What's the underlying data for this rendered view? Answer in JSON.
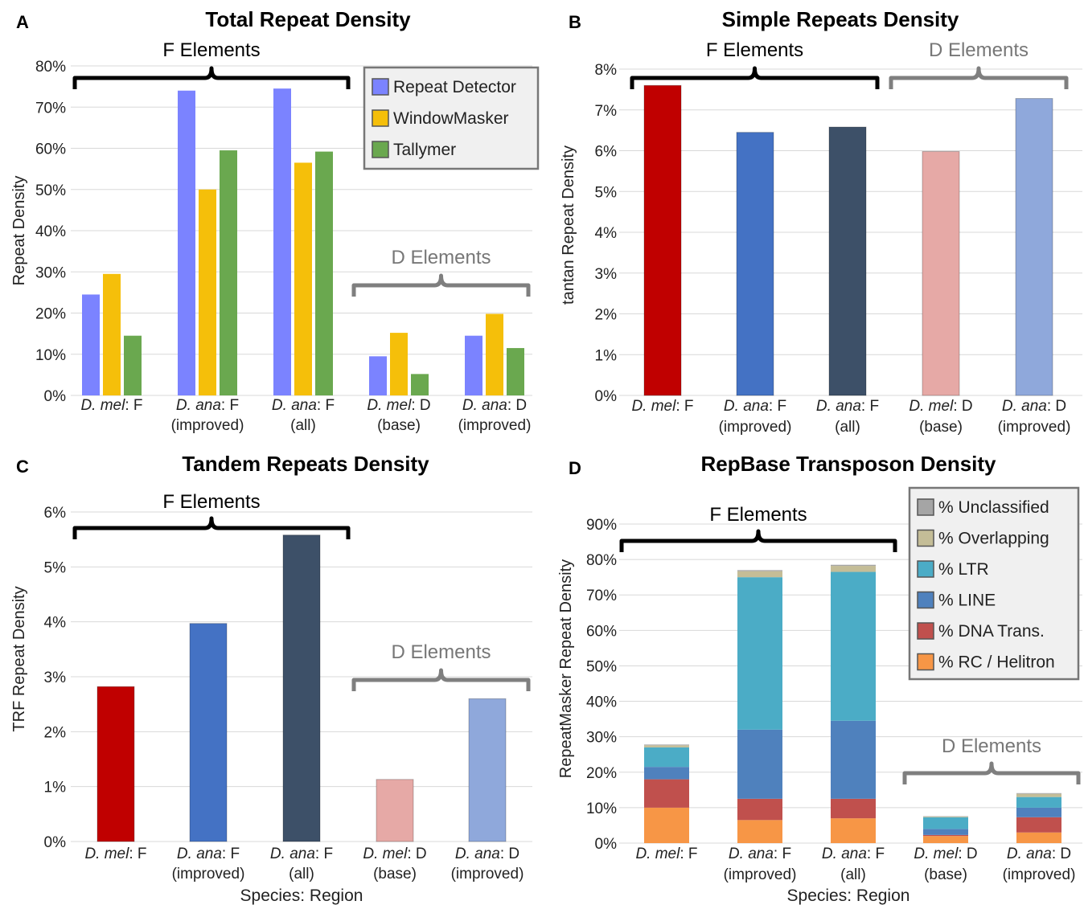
{
  "panels": [
    {
      "letter": "A",
      "chart_data": {
        "type": "bar",
        "title": "Total Repeat Density",
        "ylabel": "Repeat Density",
        "xlabel": "",
        "ylim": [
          0,
          80
        ],
        "yticks": [
          "0%",
          "10%",
          "20%",
          "30%",
          "40%",
          "50%",
          "60%",
          "70%",
          "80%"
        ],
        "categories": [
          {
            "species": "D. mel",
            "region": ": F",
            "sub": ""
          },
          {
            "species": "D. ana",
            "region": ": F",
            "sub": "(improved)"
          },
          {
            "species": "D. ana",
            "region": ": F",
            "sub": "(all)"
          },
          {
            "species": "D. mel",
            "region": ": D",
            "sub": "(base)"
          },
          {
            "species": "D. ana",
            "region": ": D",
            "sub": "(improved)"
          }
        ],
        "series": [
          {
            "name": "Repeat Detector",
            "color": "#7b83ff",
            "values": [
              24.5,
              74,
              74.5,
              9.5,
              14.5
            ]
          },
          {
            "name": "WindowMasker",
            "color": "#f5bf0a",
            "values": [
              29.5,
              50,
              56.5,
              15.2,
              19.8
            ]
          },
          {
            "name": "Tallymer",
            "color": "#6aa84f",
            "values": [
              14.5,
              59.5,
              59.2,
              5.2,
              11.5
            ]
          }
        ],
        "groups": [
          {
            "label": "F Elements",
            "span": [
              0,
              2
            ],
            "style": "f"
          },
          {
            "label": "D Elements",
            "span": [
              3,
              4
            ],
            "style": "d"
          }
        ],
        "legend": "top-right",
        "grid": true
      }
    },
    {
      "letter": "B",
      "chart_data": {
        "type": "bar",
        "title": "Simple Repeats Density",
        "ylabel": "tantan Repeat Density",
        "xlabel": "",
        "ylim": [
          0,
          8
        ],
        "yticks": [
          "0%",
          "1%",
          "2%",
          "3%",
          "4%",
          "5%",
          "6%",
          "7%",
          "8%"
        ],
        "categories": [
          {
            "species": "D. mel",
            "region": ": F",
            "sub": ""
          },
          {
            "species": "D. ana",
            "region": ": F",
            "sub": "(improved)"
          },
          {
            "species": "D. ana",
            "region": ": F",
            "sub": "(all)"
          },
          {
            "species": "D. mel",
            "region": ": D",
            "sub": "(base)"
          },
          {
            "species": "D. ana",
            "region": ": D",
            "sub": "(improved)"
          }
        ],
        "values": [
          7.6,
          6.45,
          6.58,
          5.98,
          7.28
        ],
        "colors": [
          "#c00000",
          "#4472c4",
          "#3d5068",
          "#e6a9a6",
          "#8fa8db"
        ],
        "groups": [
          {
            "label": "F Elements",
            "span": [
              0,
              2
            ],
            "style": "f"
          },
          {
            "label": "D Elements",
            "span": [
              3,
              4
            ],
            "style": "d"
          }
        ],
        "grid": true
      }
    },
    {
      "letter": "C",
      "chart_data": {
        "type": "bar",
        "title": "Tandem Repeats Density",
        "ylabel": "TRF Repeat Density",
        "xlabel": "Species: Region",
        "ylim": [
          0,
          6
        ],
        "yticks": [
          "0%",
          "1%",
          "2%",
          "3%",
          "4%",
          "5%",
          "6%"
        ],
        "categories": [
          {
            "species": "D. mel",
            "region": ": F",
            "sub": ""
          },
          {
            "species": "D. ana",
            "region": ": F",
            "sub": "(improved)"
          },
          {
            "species": "D. ana",
            "region": ": F",
            "sub": "(all)"
          },
          {
            "species": "D. mel",
            "region": ": D",
            "sub": "(base)"
          },
          {
            "species": "D. ana",
            "region": ": D",
            "sub": "(improved)"
          }
        ],
        "values": [
          2.82,
          3.97,
          5.58,
          1.13,
          2.6
        ],
        "colors": [
          "#c00000",
          "#4472c4",
          "#3d5068",
          "#e6a9a6",
          "#8fa8db"
        ],
        "groups": [
          {
            "label": "F Elements",
            "span": [
              0,
              2
            ],
            "style": "f"
          },
          {
            "label": "D Elements",
            "span": [
              3,
              4
            ],
            "style": "d"
          }
        ],
        "grid": true
      }
    },
    {
      "letter": "D",
      "chart_data": {
        "type": "bar",
        "stacked": true,
        "title": "RepBase Transposon Density",
        "ylabel": "RepeatMasker Repeat Density",
        "xlabel": "Species: Region",
        "ylim": [
          0,
          90
        ],
        "yticks": [
          "0%",
          "10%",
          "20%",
          "30%",
          "40%",
          "50%",
          "60%",
          "70%",
          "80%",
          "90%"
        ],
        "categories": [
          {
            "species": "D. mel",
            "region": ": F",
            "sub": ""
          },
          {
            "species": "D. ana",
            "region": ": F",
            "sub": "(improved)"
          },
          {
            "species": "D. ana",
            "region": ": F",
            "sub": "(all)"
          },
          {
            "species": "D. mel",
            "region": ": D",
            "sub": "(base)"
          },
          {
            "species": "D. ana",
            "region": ": D",
            "sub": "(improved)"
          }
        ],
        "series": [
          {
            "name": "% RC / Helitron",
            "color": "#f79646",
            "values": [
              10,
              6.5,
              7,
              2,
              3
            ]
          },
          {
            "name": "% DNA Trans.",
            "color": "#c0504d",
            "values": [
              8,
              6,
              5.5,
              0.3,
              4.3
            ]
          },
          {
            "name": "% LINE",
            "color": "#4f81bd",
            "values": [
              3.5,
              19.5,
              22,
              1.7,
              2.7
            ]
          },
          {
            "name": "% LTR",
            "color": "#4bacc6",
            "values": [
              5.5,
              43,
              42,
              3.3,
              3
            ]
          },
          {
            "name": "% Overlapping",
            "color": "#c4bd97",
            "values": [
              0.6,
              1.7,
              1.7,
              0.2,
              0.9
            ]
          },
          {
            "name": "% Unclassified",
            "color": "#a5a5a5",
            "values": [
              0.2,
              0.3,
              0.3,
              0.1,
              0.2
            ]
          }
        ],
        "legend_order": [
          "% Unclassified",
          "% Overlapping",
          "% LTR",
          "% LINE",
          "% DNA Trans.",
          "% RC / Helitron"
        ],
        "groups": [
          {
            "label": "F Elements",
            "span": [
              0,
              2
            ],
            "style": "f"
          },
          {
            "label": "D Elements",
            "span": [
              3,
              4
            ],
            "style": "d"
          }
        ],
        "legend": "top-right",
        "grid": true
      }
    }
  ]
}
